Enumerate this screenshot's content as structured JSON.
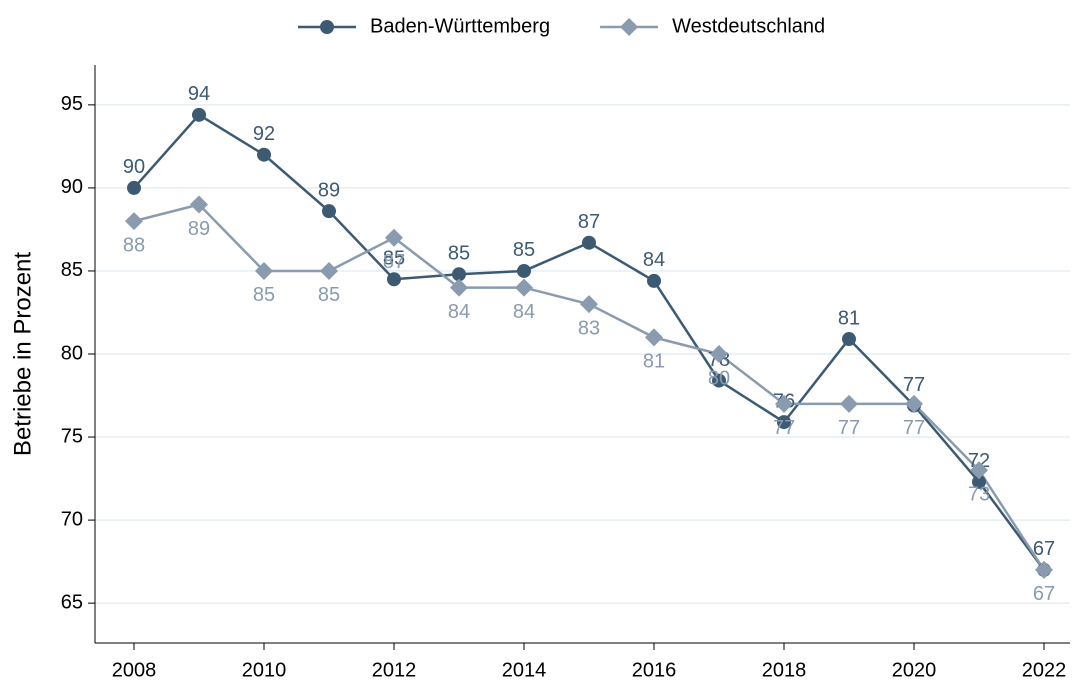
{
  "chart_data": {
    "type": "line",
    "ylabel": "Betriebe in Prozent",
    "x": [
      2008,
      2009,
      2010,
      2011,
      2012,
      2013,
      2014,
      2015,
      2016,
      2017,
      2018,
      2019,
      2020,
      2021,
      2022
    ],
    "series": [
      {
        "name": "Baden-Württemberg",
        "color": "#3d5a73",
        "marker": "circle",
        "values": [
          90.0,
          94.4,
          92.0,
          88.6,
          84.5,
          84.8,
          85.0,
          86.7,
          84.4,
          78.4,
          75.9,
          80.9,
          76.9,
          72.3,
          67.0
        ],
        "value_labels": [
          "90",
          "94",
          "92",
          "89",
          "85",
          "85",
          "85",
          "87",
          "84",
          "78",
          "76",
          "81",
          "77",
          "72",
          "67"
        ]
      },
      {
        "name": "Westdeutschland",
        "color": "#8a9bb0",
        "marker": "diamond",
        "values": [
          88,
          89,
          85,
          85,
          87,
          84,
          84,
          83,
          81,
          80,
          77,
          77,
          77,
          73,
          67
        ]
      }
    ],
    "xlim": [
      2007.4,
      2022.4
    ],
    "xticks": [
      2008,
      2010,
      2012,
      2014,
      2016,
      2018,
      2020,
      2022
    ],
    "ylim": [
      62.6,
      97.4
    ],
    "yticks": [
      65,
      70,
      75,
      80,
      85,
      90,
      95
    ],
    "grid": true,
    "legend": "top"
  }
}
